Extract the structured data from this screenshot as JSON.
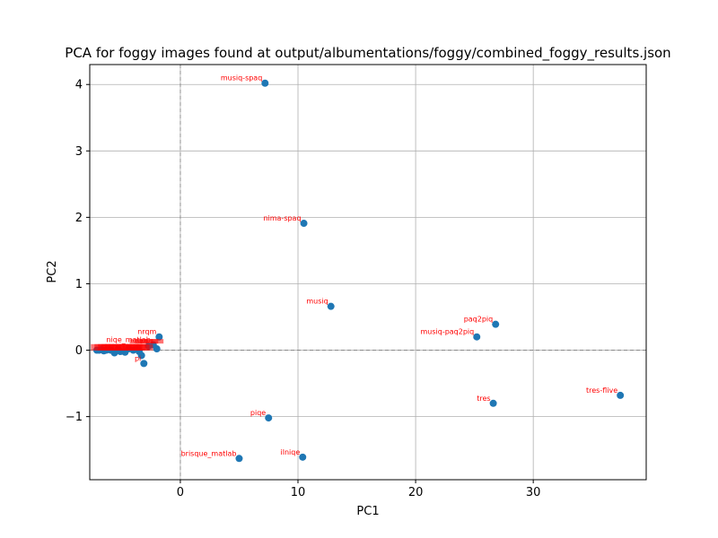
{
  "chart_data": {
    "type": "scatter",
    "title": "PCA for foggy images found at output/albumentations/foggy/combined_foggy_results.json",
    "xlabel": "PC1",
    "ylabel": "PC2",
    "xlim": [
      -7.7,
      39.6
    ],
    "ylim": [
      -1.95,
      4.3
    ],
    "xticks": [
      0,
      10,
      20,
      30
    ],
    "yticks": [
      -1,
      0,
      1,
      2,
      3,
      4
    ],
    "xtick_labels": [
      "0",
      "10",
      "20",
      "30"
    ],
    "ytick_labels": [
      "−1",
      "0",
      "1",
      "2",
      "3",
      "4"
    ],
    "grid": true,
    "zero_lines": true,
    "marker_color": "#1f77b4",
    "label_color": "#ff0000",
    "points": [
      {
        "label": "musiq-spaq",
        "x": 7.2,
        "y": 4.02
      },
      {
        "label": "nima-spaq",
        "x": 10.5,
        "y": 1.91
      },
      {
        "label": "musiq",
        "x": 12.8,
        "y": 0.66
      },
      {
        "label": "paq2piq",
        "x": 26.8,
        "y": 0.39
      },
      {
        "label": "musiq-paq2piq",
        "x": 25.2,
        "y": 0.2
      },
      {
        "label": "tres-flive",
        "x": 37.4,
        "y": -0.68
      },
      {
        "label": "tres",
        "x": 26.6,
        "y": -0.8
      },
      {
        "label": "piqe",
        "x": 7.5,
        "y": -1.02
      },
      {
        "label": "ilniqe",
        "x": 10.4,
        "y": -1.61
      },
      {
        "label": "brisque_matlab",
        "x": 5.0,
        "y": -1.63
      },
      {
        "label": "nrqm",
        "x": -1.8,
        "y": 0.2
      },
      {
        "label": "niqe_matlab",
        "x": -2.3,
        "y": 0.08
      },
      {
        "label": "",
        "x": -2.0,
        "y": 0.02
      },
      {
        "label": "pi",
        "x": -3.1,
        "y": -0.2
      },
      {
        "label": "",
        "x": -3.3,
        "y": -0.08
      },
      {
        "label": "",
        "x": -2.7,
        "y": 0.06
      },
      {
        "label": "",
        "x": -3.6,
        "y": 0.03
      },
      {
        "label": "",
        "x": -3.5,
        "y": -0.02
      },
      {
        "label": "",
        "x": -4.0,
        "y": 0.0
      },
      {
        "label": "",
        "x": -4.4,
        "y": 0.02
      },
      {
        "label": "",
        "x": -4.7,
        "y": -0.03
      },
      {
        "label": "",
        "x": -5.1,
        "y": -0.02
      },
      {
        "label": "",
        "x": -5.3,
        "y": 0.01
      },
      {
        "label": "",
        "x": -5.6,
        "y": -0.04
      },
      {
        "label": "",
        "x": -5.9,
        "y": 0.0
      },
      {
        "label": "",
        "x": -6.1,
        "y": 0.01
      },
      {
        "label": "",
        "x": -6.3,
        "y": 0.0
      },
      {
        "label": "",
        "x": -6.5,
        "y": -0.01
      },
      {
        "label": "",
        "x": -6.7,
        "y": 0.01
      },
      {
        "label": "",
        "x": -6.9,
        "y": 0.0
      },
      {
        "label": "",
        "x": -7.1,
        "y": 0.0
      }
    ]
  }
}
